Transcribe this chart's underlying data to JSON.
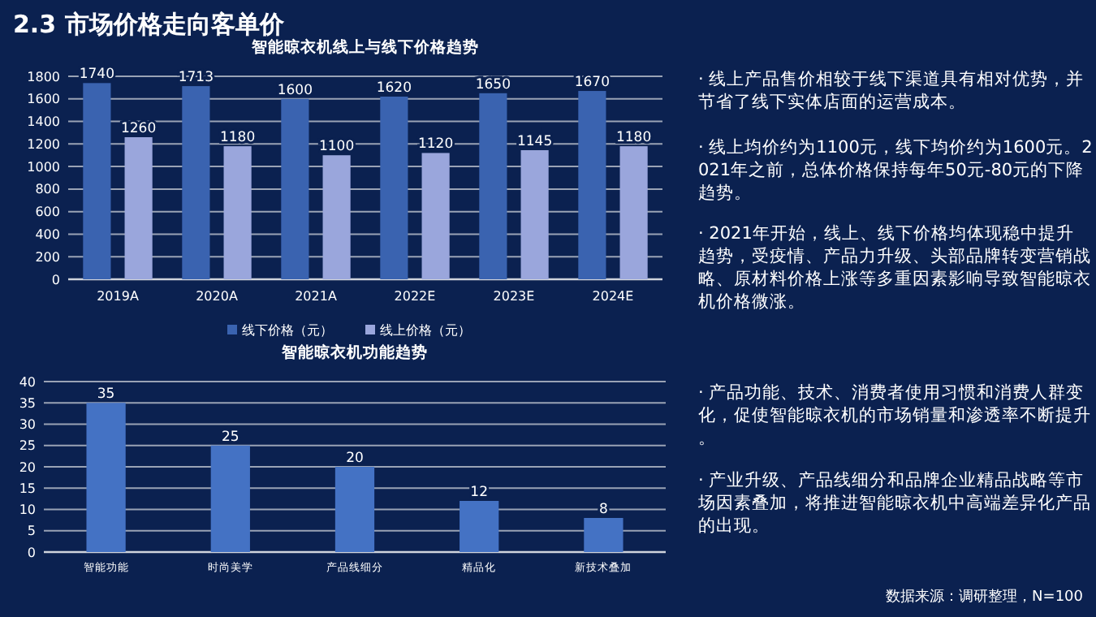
{
  "chart_data": [
    {
      "type": "bar",
      "title": "智能晾衣机线上与线下价格趋势",
      "annotations": [
        "2.3 市场价格走向客单价"
      ],
      "categories": [
        "2019A",
        "2020A",
        "2021A",
        "2022E",
        "2023E",
        "2024E"
      ],
      "series": [
        {
          "name": "线下价格（元）",
          "color": "#3a63b0",
          "values": [
            1740,
            1713,
            1600,
            1620,
            1650,
            1670
          ]
        },
        {
          "name": "线上价格（元）",
          "color": "#9aa6dc",
          "values": [
            1260,
            1180,
            1100,
            1120,
            1145,
            1180
          ]
        }
      ],
      "ylim": [
        0,
        1800
      ],
      "yticks": [
        0,
        200,
        400,
        600,
        800,
        1000,
        1200,
        1400,
        1600,
        1800
      ],
      "grid": "y",
      "legend": "bottom",
      "data_labels": true
    },
    {
      "type": "bar",
      "title": "智能晾衣机功能趋势",
      "categories": [
        "智能功能",
        "时尚美学",
        "产品线细分",
        "精品化",
        "新技术叠加"
      ],
      "values": [
        35,
        25,
        20,
        12,
        8
      ],
      "color": "#4472c4",
      "ylim": [
        0,
        40
      ],
      "yticks": [
        0,
        5,
        10,
        15,
        20,
        25,
        30,
        35,
        40
      ],
      "grid": "y",
      "data_labels": true
    },
    {
      "type": "other",
      "annotations": [
        "· 线上产品售价相较于线下渠道具有相对优势，并节省了线下实体店面的运营成本。",
        "· 线上均价约为1100元，线下均价约为1600元。2021年之前，总体价格保持每年50元-80元的下降趋势。",
        "· 2021年开始，线上、线下价格均体现稳中提升趋势，受疫情、产品力升级、头部品牌转变营销战略、原材料价格上涨等多重因素影响导致智能晾衣机价格微涨。",
        "· 产品功能、技术、消费者使用习惯和消费人群变化，促使智能晾衣机的市场销量和渗透率不断提升。",
        "· 产业升级、产品线细分和品牌企业精品战略等市场因素叠加，将推进智能晾衣机中高端差异化产品的出现。",
        "数据来源：调研整理，N=100"
      ]
    }
  ]
}
